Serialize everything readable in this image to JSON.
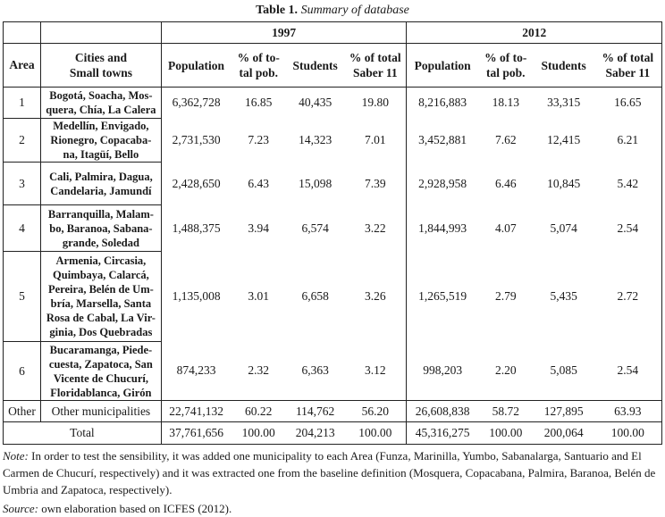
{
  "title": {
    "label": "Table 1.",
    "caption": "Summary of database"
  },
  "header": {
    "years": [
      "1997",
      "2012"
    ],
    "area": "Area",
    "cities": "Cities and\nSmall towns",
    "columns": [
      "Population",
      "% of to-\ntal pob.",
      "Students",
      "% of total\nSaber 11",
      "Population",
      "% of to-\ntal pob.",
      "Students",
      "% of total\nSaber 11"
    ]
  },
  "rows": [
    {
      "area": "1",
      "cities": "Bogotá, Soacha, Mos-\nquera, Chía, La Calera",
      "values": [
        "6,362,728",
        "16.85",
        "40,435",
        "19.80",
        "8,216,883",
        "18.13",
        "33,315",
        "16.65"
      ]
    },
    {
      "area": "2",
      "cities": "Medellín, Envigado,\nRionegro, Copacaba-\nna, Itagüí, Bello",
      "values": [
        "2,731,530",
        "7.23",
        "14,323",
        "7.01",
        "3,452,881",
        "7.62",
        "12,415",
        "6.21"
      ]
    },
    {
      "area": "3",
      "cities": "Cali, Palmira, Dagua,\nCandelaria, Jamundí",
      "values": [
        "2,428,650",
        "6.43",
        "15,098",
        "7.39",
        "2,928,958",
        "6.46",
        "10,845",
        "5.42"
      ]
    },
    {
      "area": "4",
      "cities": "Barranquilla, Malam-\nbo, Baranoa, Sabana-\ngrande, Soledad",
      "values": [
        "1,488,375",
        "3.94",
        "6,574",
        "3.22",
        "1,844,993",
        "4.07",
        "5,074",
        "2.54"
      ]
    },
    {
      "area": "5",
      "cities": "Armenia, Circasia,\nQuimbaya, Calarcá,\nPereira, Belén de Um-\nbría, Marsella, Santa\nRosa de Cabal, La Vir-\nginia, Dos Quebradas",
      "values": [
        "1,135,008",
        "3.01",
        "6,658",
        "3.26",
        "1,265,519",
        "2.79",
        "5,435",
        "2.72"
      ]
    },
    {
      "area": "6",
      "cities": "Bucaramanga, Piede-\ncuesta, Zapatoca, San\nVicente de Chucurí,\nFloridablanca, Girón",
      "values": [
        "874,233",
        "2.32",
        "6,363",
        "3.12",
        "998,203",
        "2.20",
        "5,085",
        "2.54"
      ]
    }
  ],
  "other": {
    "area": "Other",
    "cities": "Other municipalities",
    "values": [
      "22,741,132",
      "60.22",
      "114,762",
      "56.20",
      "26,608,838",
      "58.72",
      "127,895",
      "63.93"
    ]
  },
  "total": {
    "label": "Total",
    "values": [
      "37,761,656",
      "100.00",
      "204,213",
      "100.00",
      "45,316,275",
      "100.00",
      "200,064",
      "100.00"
    ]
  },
  "note": {
    "label": "Note:",
    "text": " In order to test the sensibility, it was added one municipality to each Area (Funza, Marinilla, Yumbo, Sabanalarga, Santuario and El Carmen de Chucurí, respectively) and it was extracted one from the baseline definition (Mosquera, Copacabana, Palmira, Baranoa, Belén de Umbria and Zapatoca, respectively)."
  },
  "source": {
    "label": "Source:",
    "text": " own elaboration based on ICFES (2012)."
  }
}
